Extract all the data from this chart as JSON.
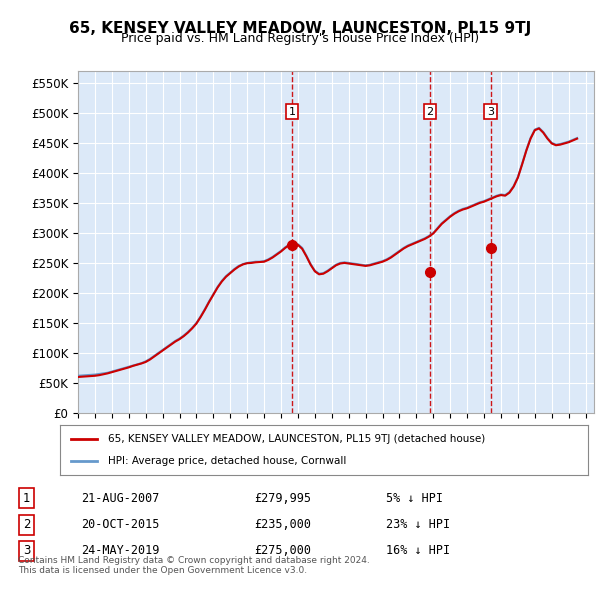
{
  "title": "65, KENSEY VALLEY MEADOW, LAUNCESTON, PL15 9TJ",
  "subtitle": "Price paid vs. HM Land Registry's House Price Index (HPI)",
  "ylabel_ticks": [
    "£0",
    "£50K",
    "£100K",
    "£150K",
    "£200K",
    "£250K",
    "£300K",
    "£350K",
    "£400K",
    "£450K",
    "£500K",
    "£550K"
  ],
  "ytick_vals": [
    0,
    50000,
    100000,
    150000,
    200000,
    250000,
    300000,
    350000,
    400000,
    450000,
    500000,
    550000
  ],
  "ylim": [
    0,
    570000
  ],
  "xlim_start": 1995.0,
  "xlim_end": 2025.5,
  "background_color": "#dce9f8",
  "plot_bg_color": "#dce9f8",
  "grid_color": "#ffffff",
  "red_line_color": "#cc0000",
  "blue_line_color": "#6699cc",
  "sale_marker_color": "#cc0000",
  "dashed_line_color": "#cc0000",
  "transactions": [
    {
      "label": "1",
      "date": "21-AUG-2007",
      "price": 279995,
      "x_year": 2007.64,
      "hpi_pct": "5% ↓ HPI"
    },
    {
      "label": "2",
      "date": "20-OCT-2015",
      "price": 235000,
      "x_year": 2015.8,
      "hpi_pct": "23% ↓ HPI"
    },
    {
      "label": "3",
      "date": "24-MAY-2019",
      "price": 275000,
      "x_year": 2019.39,
      "hpi_pct": "16% ↓ HPI"
    }
  ],
  "legend_label_red": "65, KENSEY VALLEY MEADOW, LAUNCESTON, PL15 9TJ (detached house)",
  "legend_label_blue": "HPI: Average price, detached house, Cornwall",
  "footnote": "Contains HM Land Registry data © Crown copyright and database right 2024.\nThis data is licensed under the Open Government Licence v3.0.",
  "hpi_data": {
    "years": [
      1995.0,
      1995.25,
      1995.5,
      1995.75,
      1996.0,
      1996.25,
      1996.5,
      1996.75,
      1997.0,
      1997.25,
      1997.5,
      1997.75,
      1998.0,
      1998.25,
      1998.5,
      1998.75,
      1999.0,
      1999.25,
      1999.5,
      1999.75,
      2000.0,
      2000.25,
      2000.5,
      2000.75,
      2001.0,
      2001.25,
      2001.5,
      2001.75,
      2002.0,
      2002.25,
      2002.5,
      2002.75,
      2003.0,
      2003.25,
      2003.5,
      2003.75,
      2004.0,
      2004.25,
      2004.5,
      2004.75,
      2005.0,
      2005.25,
      2005.5,
      2005.75,
      2006.0,
      2006.25,
      2006.5,
      2006.75,
      2007.0,
      2007.25,
      2007.5,
      2007.75,
      2008.0,
      2008.25,
      2008.5,
      2008.75,
      2009.0,
      2009.25,
      2009.5,
      2009.75,
      2010.0,
      2010.25,
      2010.5,
      2010.75,
      2011.0,
      2011.25,
      2011.5,
      2011.75,
      2012.0,
      2012.25,
      2012.5,
      2012.75,
      2013.0,
      2013.25,
      2013.5,
      2013.75,
      2014.0,
      2014.25,
      2014.5,
      2014.75,
      2015.0,
      2015.25,
      2015.5,
      2015.75,
      2016.0,
      2016.25,
      2016.5,
      2016.75,
      2017.0,
      2017.25,
      2017.5,
      2017.75,
      2018.0,
      2018.25,
      2018.5,
      2018.75,
      2019.0,
      2019.25,
      2019.5,
      2019.75,
      2020.0,
      2020.25,
      2020.5,
      2020.75,
      2021.0,
      2021.25,
      2021.5,
      2021.75,
      2022.0,
      2022.25,
      2022.5,
      2022.75,
      2023.0,
      2023.25,
      2023.5,
      2023.75,
      2024.0,
      2024.25,
      2024.5
    ],
    "values": [
      62000,
      62500,
      63000,
      63500,
      64000,
      65000,
      66000,
      67000,
      69000,
      71000,
      73000,
      75000,
      77000,
      79000,
      81000,
      83000,
      86000,
      90000,
      95000,
      100000,
      105000,
      110000,
      115000,
      120000,
      124000,
      129000,
      135000,
      142000,
      150000,
      161000,
      173000,
      186000,
      198000,
      210000,
      220000,
      228000,
      234000,
      240000,
      245000,
      248000,
      250000,
      251000,
      252000,
      252000,
      253000,
      256000,
      260000,
      265000,
      270000,
      276000,
      281000,
      283000,
      281000,
      275000,
      262000,
      248000,
      237000,
      232000,
      233000,
      237000,
      242000,
      247000,
      250000,
      251000,
      250000,
      249000,
      248000,
      247000,
      246000,
      247000,
      249000,
      251000,
      253000,
      256000,
      260000,
      265000,
      270000,
      275000,
      279000,
      282000,
      285000,
      288000,
      291000,
      295000,
      300000,
      308000,
      316000,
      322000,
      328000,
      333000,
      337000,
      340000,
      342000,
      345000,
      348000,
      351000,
      353000,
      356000,
      359000,
      362000,
      364000,
      363000,
      368000,
      378000,
      393000,
      415000,
      438000,
      458000,
      472000,
      475000,
      468000,
      458000,
      450000,
      447000,
      448000,
      450000,
      452000,
      455000,
      458000
    ]
  },
  "property_data": {
    "years": [
      1995.0,
      1995.25,
      1995.5,
      1995.75,
      1996.0,
      1996.25,
      1996.5,
      1996.75,
      1997.0,
      1997.25,
      1997.5,
      1997.75,
      1998.0,
      1998.25,
      1998.5,
      1998.75,
      1999.0,
      1999.25,
      1999.5,
      1999.75,
      2000.0,
      2000.25,
      2000.5,
      2000.75,
      2001.0,
      2001.25,
      2001.5,
      2001.75,
      2002.0,
      2002.25,
      2002.5,
      2002.75,
      2003.0,
      2003.25,
      2003.5,
      2003.75,
      2004.0,
      2004.25,
      2004.5,
      2004.75,
      2005.0,
      2005.25,
      2005.5,
      2005.75,
      2006.0,
      2006.25,
      2006.5,
      2006.75,
      2007.0,
      2007.25,
      2007.5,
      2007.75,
      2008.0,
      2008.25,
      2008.5,
      2008.75,
      2009.0,
      2009.25,
      2009.5,
      2009.75,
      2010.0,
      2010.25,
      2010.5,
      2010.75,
      2011.0,
      2011.25,
      2011.5,
      2011.75,
      2012.0,
      2012.25,
      2012.5,
      2012.75,
      2013.0,
      2013.25,
      2013.5,
      2013.75,
      2014.0,
      2014.25,
      2014.5,
      2014.75,
      2015.0,
      2015.25,
      2015.5,
      2015.75,
      2016.0,
      2016.25,
      2016.5,
      2016.75,
      2017.0,
      2017.25,
      2017.5,
      2017.75,
      2018.0,
      2018.25,
      2018.5,
      2018.75,
      2019.0,
      2019.25,
      2019.5,
      2019.75,
      2020.0,
      2020.25,
      2020.5,
      2020.75,
      2021.0,
      2021.25,
      2021.5,
      2021.75,
      2022.0,
      2022.25,
      2022.5,
      2022.75,
      2023.0,
      2023.25,
      2023.5,
      2023.75,
      2024.0,
      2024.25,
      2024.5
    ],
    "values": [
      60000,
      60500,
      61000,
      61500,
      62000,
      63000,
      64500,
      66000,
      68000,
      70000,
      72000,
      74000,
      76000,
      78500,
      80500,
      82500,
      85000,
      89000,
      94000,
      99000,
      104000,
      109000,
      114000,
      119000,
      123000,
      128000,
      134000,
      141000,
      149000,
      160000,
      172000,
      185000,
      197000,
      209000,
      219000,
      227000,
      233000,
      239000,
      244000,
      247500,
      249500,
      250000,
      251000,
      251500,
      252000,
      255000,
      259000,
      264000,
      269000,
      275000,
      280000,
      282000,
      280000,
      273500,
      261000,
      247000,
      236000,
      231000,
      232000,
      236000,
      241000,
      246000,
      249000,
      250000,
      249000,
      248000,
      247000,
      246000,
      245000,
      246000,
      248000,
      250000,
      252000,
      255000,
      259000,
      264000,
      269000,
      274000,
      278000,
      281000,
      284000,
      287000,
      290000,
      294000,
      299000,
      307000,
      315000,
      321000,
      327000,
      332000,
      336000,
      339000,
      341000,
      344000,
      347000,
      350000,
      352000,
      355000,
      358000,
      361000,
      363000,
      362000,
      367000,
      377000,
      392000,
      414000,
      437000,
      457000,
      471000,
      474000,
      467000,
      457000,
      449000,
      446000,
      447000,
      449000,
      451000,
      454000,
      457000
    ]
  }
}
